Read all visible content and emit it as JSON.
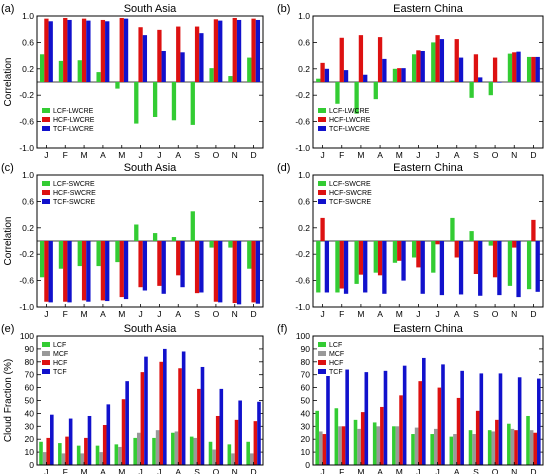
{
  "colors": {
    "green": "#33cc33",
    "red": "#dd1111",
    "blue": "#1111cc",
    "gray": "#999999",
    "frame": "#000000"
  },
  "chart_data": [
    {
      "panel": "(a)",
      "title": "South Asia",
      "type": "bar",
      "ylabel": "Correlation",
      "ylim": [
        -1.0,
        1.0
      ],
      "yticks": [
        "-1.0",
        "-0.6",
        "-0.2",
        "0.2",
        "0.6",
        "1.0"
      ],
      "categories": [
        "J",
        "F",
        "M",
        "A",
        "M",
        "J",
        "J",
        "A",
        "S",
        "O",
        "N",
        "D"
      ],
      "legend": "lower-left",
      "series": [
        {
          "name": "LCF-LWCRE",
          "color": "green",
          "values": [
            0.42,
            0.32,
            0.33,
            0.15,
            -0.1,
            -0.63,
            -0.53,
            -0.58,
            -0.65,
            0.21,
            0.09,
            0.37
          ]
        },
        {
          "name": "HCF-LWCRE",
          "color": "red",
          "values": [
            0.96,
            0.97,
            0.96,
            0.94,
            0.97,
            0.83,
            0.79,
            0.84,
            0.84,
            0.95,
            0.97,
            0.96
          ]
        },
        {
          "name": "TCF-LWCRE",
          "color": "blue",
          "values": [
            0.92,
            0.94,
            0.93,
            0.92,
            0.96,
            0.71,
            0.47,
            0.45,
            0.74,
            0.93,
            0.94,
            0.94
          ]
        }
      ]
    },
    {
      "panel": "(b)",
      "title": "Eastern China",
      "type": "bar",
      "ylabel": "",
      "ylim": [
        -1.0,
        1.0
      ],
      "yticks": [
        "-1.0",
        "-0.6",
        "-0.2",
        "0.2",
        "0.6",
        "1.0"
      ],
      "categories": [
        "J",
        "F",
        "M",
        "A",
        "M",
        "J",
        "J",
        "A",
        "S",
        "O",
        "N",
        "D"
      ],
      "legend": "lower-left",
      "series": [
        {
          "name": "LCF-LWCRE",
          "color": "green",
          "values": [
            0.05,
            -0.33,
            -0.48,
            -0.26,
            0.2,
            0.42,
            0.6,
            0.02,
            -0.24,
            -0.2,
            0.43,
            0.38
          ]
        },
        {
          "name": "HCF-LWCRE",
          "color": "red",
          "values": [
            0.29,
            0.67,
            0.71,
            0.68,
            0.21,
            0.48,
            0.71,
            0.65,
            0.42,
            0.37,
            0.45,
            0.38
          ]
        },
        {
          "name": "TCF-LWCRE",
          "color": "blue",
          "values": [
            0.2,
            0.18,
            0.11,
            0.35,
            0.21,
            0.47,
            0.65,
            0.37,
            0.07,
            0.0,
            0.46,
            0.38
          ]
        }
      ]
    },
    {
      "panel": "(c)",
      "title": "South Asia",
      "type": "bar",
      "ylabel": "Correlation",
      "ylim": [
        -1.0,
        1.0
      ],
      "yticks": [
        "-1.0",
        "-0.6",
        "-0.2",
        "0.2",
        "0.6",
        "1.0"
      ],
      "categories": [
        "J",
        "F",
        "M",
        "A",
        "M",
        "J",
        "J",
        "A",
        "S",
        "O",
        "N",
        "D"
      ],
      "legend": "upper-left",
      "series": [
        {
          "name": "LCF-SWCRE",
          "color": "green",
          "values": [
            -0.55,
            -0.42,
            -0.38,
            -0.38,
            -0.32,
            0.25,
            0.12,
            0.06,
            0.45,
            -0.1,
            -0.1,
            -0.42
          ]
        },
        {
          "name": "HCF-SWCRE",
          "color": "red",
          "values": [
            -0.92,
            -0.92,
            -0.9,
            -0.9,
            -0.85,
            -0.7,
            -0.68,
            -0.52,
            -0.79,
            -0.92,
            -0.94,
            -0.93
          ]
        },
        {
          "name": "TCF-SWCRE",
          "color": "blue",
          "values": [
            -0.93,
            -0.93,
            -0.92,
            -0.91,
            -0.88,
            -0.75,
            -0.8,
            -0.7,
            -0.78,
            -0.93,
            -0.96,
            -0.95
          ]
        }
      ]
    },
    {
      "panel": "(d)",
      "title": "Eastern China",
      "type": "bar",
      "ylabel": "",
      "ylim": [
        -1.0,
        1.0
      ],
      "yticks": [
        "-1.0",
        "-0.6",
        "-0.2",
        "0.2",
        "0.6",
        "1.0"
      ],
      "categories": [
        "J",
        "F",
        "M",
        "A",
        "M",
        "J",
        "J",
        "A",
        "S",
        "O",
        "N",
        "D"
      ],
      "legend": "upper-left",
      "series": [
        {
          "name": "LCF-SWCRE",
          "color": "green",
          "values": [
            -0.78,
            -0.78,
            -0.65,
            -0.48,
            -0.33,
            -0.25,
            -0.48,
            0.35,
            0.15,
            -0.07,
            -0.68,
            -0.73
          ]
        },
        {
          "name": "HCF-SWCRE",
          "color": "red",
          "values": [
            0.35,
            -0.72,
            -0.51,
            -0.52,
            -0.3,
            -0.4,
            -0.05,
            -0.25,
            -0.5,
            -0.55,
            -0.1,
            0.32
          ]
        },
        {
          "name": "TCF-SWCRE",
          "color": "blue",
          "values": [
            -0.78,
            -0.8,
            -0.78,
            -0.8,
            -0.6,
            -0.8,
            -0.82,
            -0.81,
            -0.83,
            -0.82,
            -0.85,
            -0.77
          ]
        }
      ]
    },
    {
      "panel": "(e)",
      "title": "South Asia",
      "type": "bar",
      "ylabel": "Cloud Fraction (%)",
      "ylim": [
        0,
        100
      ],
      "yticks": [
        "0",
        "10",
        "20",
        "30",
        "40",
        "50",
        "60",
        "70",
        "80",
        "90",
        "100"
      ],
      "categories": [
        "J",
        "F",
        "M",
        "A",
        "M",
        "J",
        "J",
        "A",
        "S",
        "O",
        "N",
        "D"
      ],
      "legend": "upper-left",
      "series": [
        {
          "name": "LCF",
          "color": "green",
          "values": [
            18,
            17,
            15,
            15,
            16,
            21,
            21,
            25,
            22,
            18,
            16,
            18
          ]
        },
        {
          "name": "MCF",
          "color": "gray",
          "values": [
            10,
            9,
            9,
            10,
            14,
            25,
            27,
            26,
            21,
            12,
            9,
            9
          ]
        },
        {
          "name": "HCF",
          "color": "red",
          "values": [
            21,
            22,
            21,
            31,
            51,
            72,
            80,
            75,
            59,
            38,
            35,
            34
          ]
        },
        {
          "name": "TCF",
          "color": "blue",
          "values": [
            39,
            36,
            38,
            47,
            65,
            84,
            90,
            88,
            76,
            59,
            50,
            49
          ]
        }
      ]
    },
    {
      "panel": "(f)",
      "title": "Eastern China",
      "type": "bar",
      "ylabel": "",
      "ylim": [
        0,
        100
      ],
      "yticks": [
        "0",
        "10",
        "20",
        "30",
        "40",
        "50",
        "60",
        "70",
        "80",
        "90",
        "100"
      ],
      "categories": [
        "J",
        "F",
        "M",
        "A",
        "M",
        "J",
        "J",
        "A",
        "S",
        "O",
        "N",
        "D"
      ],
      "legend": "upper-left",
      "series": [
        {
          "name": "LCF",
          "color": "green",
          "values": [
            42,
            44,
            35,
            33,
            30,
            24,
            24,
            22,
            27,
            27,
            32,
            38
          ]
        },
        {
          "name": "MCF",
          "color": "gray",
          "values": [
            26,
            30,
            28,
            30,
            30,
            29,
            28,
            24,
            24,
            26,
            28,
            27
          ]
        },
        {
          "name": "HCF",
          "color": "red",
          "values": [
            24,
            30,
            41,
            45,
            54,
            65,
            60,
            52,
            42,
            35,
            27,
            25
          ]
        },
        {
          "name": "TCF",
          "color": "blue",
          "values": [
            69,
            74,
            72,
            73,
            77,
            83,
            78,
            73,
            71,
            71,
            68,
            67
          ]
        }
      ]
    }
  ]
}
